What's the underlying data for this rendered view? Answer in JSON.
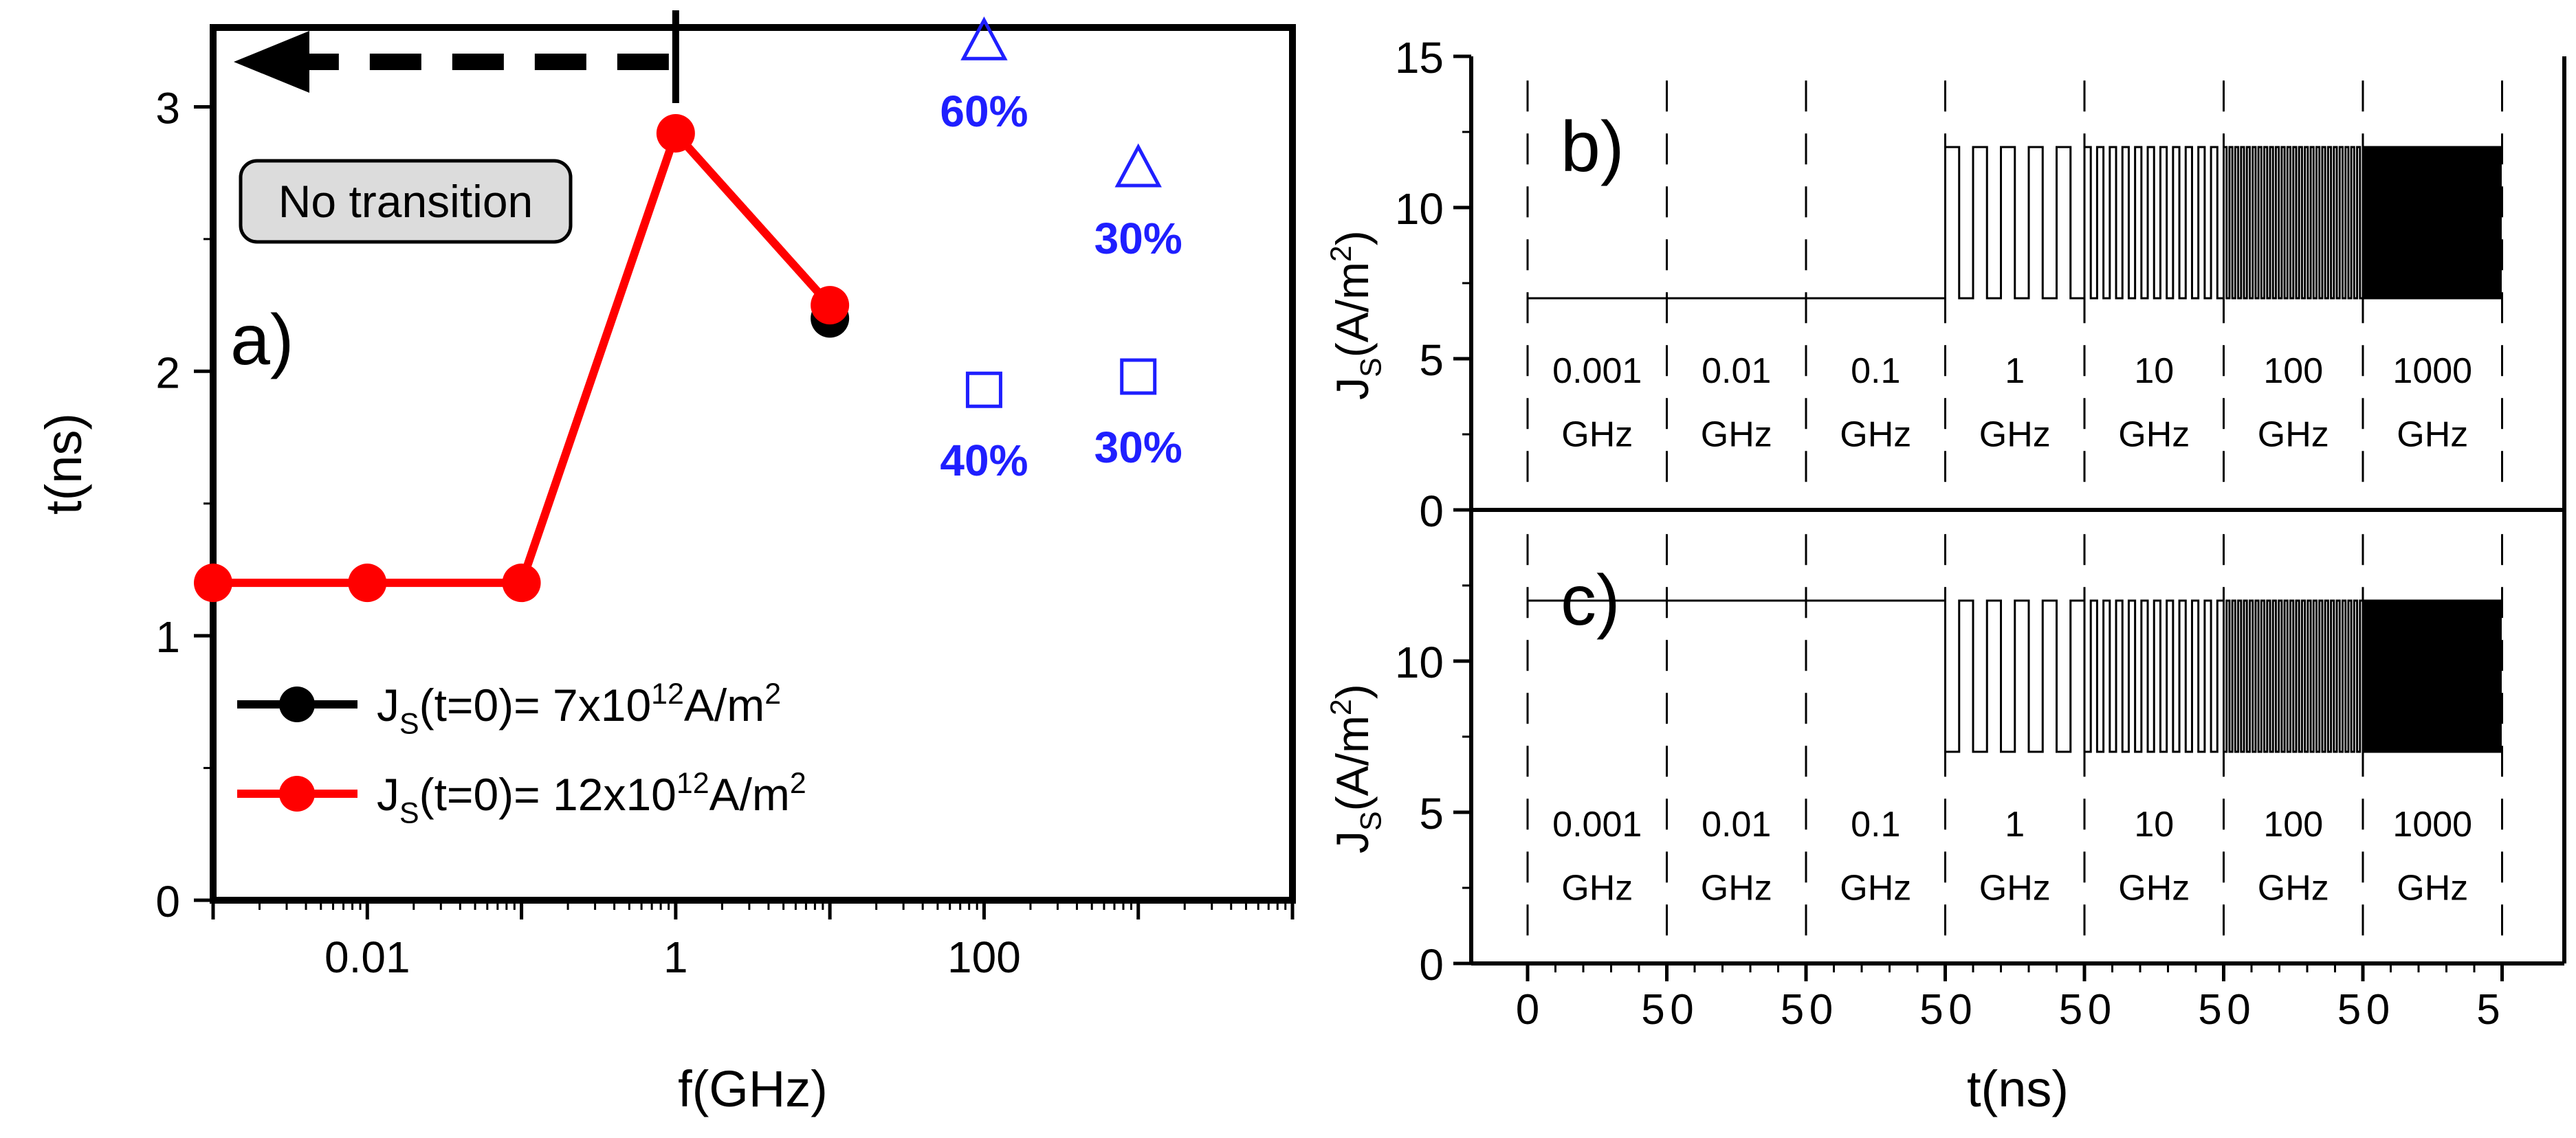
{
  "chart_data": [
    {
      "panel": "a)",
      "type": "line",
      "xlabel": "f(GHz)",
      "ylabel": "t(ns)",
      "x_scale": "log",
      "xlim": [
        0.001,
        10000
      ],
      "ylim": [
        0,
        3.3
      ],
      "x_ticks": [
        0.01,
        1,
        100
      ],
      "x_tick_labels": [
        "0.01",
        "1",
        "100"
      ],
      "y_ticks": [
        0,
        1,
        2,
        3
      ],
      "series": [
        {
          "name": "JS(t=0)= 7x10^12A/m^2",
          "legend_parts": [
            "J",
            "S",
            "(t=0)= 7x10",
            "12",
            "A/m",
            "2"
          ],
          "color": "#000000",
          "points": [
            [
              10,
              2.2
            ]
          ]
        },
        {
          "name": "JS(t=0)= 12x10^12A/m^2",
          "legend_parts": [
            "J",
            "S",
            "(t=0)= 12x10",
            "12",
            "A/m",
            "2"
          ],
          "color": "#ff0000",
          "points": [
            [
              0.001,
              1.2
            ],
            [
              0.01,
              1.2
            ],
            [
              0.1,
              1.2
            ],
            [
              1,
              2.9
            ],
            [
              10,
              2.25
            ]
          ]
        }
      ],
      "markers": [
        {
          "shape": "triangle",
          "x": 100,
          "y": 3.25,
          "label": "60%"
        },
        {
          "shape": "triangle",
          "x": 1000,
          "y": 2.77,
          "label": "30%"
        },
        {
          "shape": "square",
          "x": 100,
          "y": 1.93,
          "label": "40%"
        },
        {
          "shape": "square",
          "x": 1000,
          "y": 1.98,
          "label": "30%"
        }
      ],
      "marker_color": "#1f1fff",
      "annotation": {
        "text": "No transition",
        "arrow_from_x": 1,
        "arrow_y": 3.17,
        "direction": "left"
      },
      "legend_position": "bottom-left"
    },
    {
      "panel": "b)",
      "type": "line",
      "ylabel_parts": [
        "J",
        "S",
        "(A/m",
        "2",
        ")"
      ],
      "ylim": [
        0,
        15
      ],
      "y_ticks": [
        0,
        5,
        10,
        15
      ],
      "low": 7,
      "high": 12,
      "start_level": 7,
      "segments": [
        "0.001",
        "0.01",
        "0.1",
        "1",
        "10",
        "100",
        "1000"
      ],
      "segment_unit": "GHz",
      "segment_duration_ns": 5,
      "segment_cycles": [
        0,
        0,
        0,
        5,
        11,
        24,
        50
      ]
    },
    {
      "panel": "c)",
      "type": "line",
      "ylabel_parts": [
        "J",
        "S",
        "(A/m",
        "2",
        ")"
      ],
      "xlabel": "t(ns)",
      "ylim": [
        0,
        15
      ],
      "y_ticks": [
        0,
        5,
        10
      ],
      "x_tick_labels": [
        "0",
        "5",
        "0",
        "5",
        "0",
        "5",
        "0",
        "5",
        "0",
        "5",
        "0",
        "5",
        "0",
        "5"
      ],
      "low": 7,
      "high": 12,
      "start_level": 12,
      "segments": [
        "0.001",
        "0.01",
        "0.1",
        "1",
        "10",
        "100",
        "1000"
      ],
      "segment_unit": "GHz",
      "segment_duration_ns": 5,
      "segment_cycles": [
        0,
        0,
        0,
        5,
        11,
        24,
        50
      ]
    }
  ]
}
